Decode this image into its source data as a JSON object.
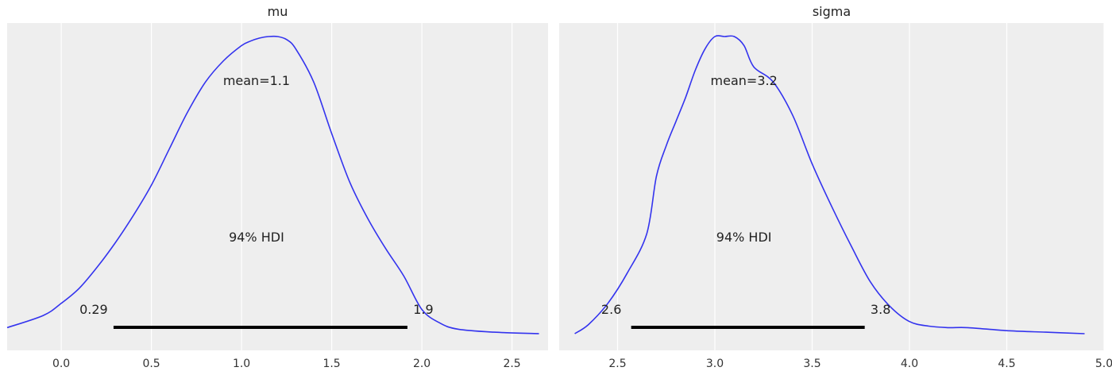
{
  "chart_data": [
    {
      "type": "line",
      "title": "mu",
      "xlim": [
        -0.3,
        2.7
      ],
      "xticks": [
        "0.0",
        "0.5",
        "1.0",
        "1.5",
        "2.0",
        "2.5"
      ],
      "xtick_values": [
        0.0,
        0.5,
        1.0,
        1.5,
        2.0,
        2.5
      ],
      "ylim": [
        0,
        1.0
      ],
      "density": {
        "x": [
          -0.3,
          -0.1,
          0.0,
          0.1,
          0.2,
          0.3,
          0.4,
          0.5,
          0.6,
          0.7,
          0.8,
          0.9,
          1.0,
          1.05,
          1.1,
          1.15,
          1.2,
          1.25,
          1.3,
          1.4,
          1.5,
          1.6,
          1.7,
          1.8,
          1.9,
          2.0,
          2.1,
          2.2,
          2.4,
          2.65
        ],
        "y": [
          0.02,
          0.06,
          0.1,
          0.15,
          0.22,
          0.3,
          0.39,
          0.49,
          0.61,
          0.73,
          0.83,
          0.9,
          0.95,
          0.965,
          0.975,
          0.98,
          0.98,
          0.97,
          0.94,
          0.83,
          0.66,
          0.5,
          0.38,
          0.28,
          0.19,
          0.08,
          0.035,
          0.015,
          0.005,
          0.0
        ]
      },
      "mean_label": "mean=1.1",
      "hdi_label": "94% HDI",
      "hdi_low": 0.29,
      "hdi_high": 1.92,
      "hdi_low_label": "0.29",
      "hdi_high_label": "1.9"
    },
    {
      "type": "line",
      "title": "sigma",
      "xlim": [
        2.2,
        5.0
      ],
      "xticks": [
        "2.5",
        "3.0",
        "3.5",
        "4.0",
        "4.5",
        "5.0"
      ],
      "xtick_values": [
        2.5,
        3.0,
        3.5,
        4.0,
        4.5,
        5.0
      ],
      "ylim": [
        0,
        1.0
      ],
      "density": {
        "x": [
          2.28,
          2.35,
          2.45,
          2.55,
          2.65,
          2.7,
          2.75,
          2.8,
          2.85,
          2.9,
          2.95,
          3.0,
          3.05,
          3.1,
          3.15,
          3.2,
          3.3,
          3.4,
          3.5,
          3.6,
          3.7,
          3.8,
          3.9,
          4.0,
          4.1,
          4.2,
          4.3,
          4.5,
          4.7,
          4.9
        ],
        "y": [
          0.0,
          0.03,
          0.1,
          0.2,
          0.33,
          0.52,
          0.62,
          0.7,
          0.78,
          0.87,
          0.94,
          0.98,
          0.98,
          0.98,
          0.95,
          0.88,
          0.83,
          0.72,
          0.56,
          0.42,
          0.29,
          0.17,
          0.09,
          0.04,
          0.025,
          0.02,
          0.02,
          0.01,
          0.005,
          0.0
        ]
      },
      "mean_label": "mean=3.2",
      "hdi_label": "94% HDI",
      "hdi_low": 2.57,
      "hdi_high": 3.77,
      "hdi_low_label": "2.6",
      "hdi_high_label": "3.8"
    }
  ]
}
